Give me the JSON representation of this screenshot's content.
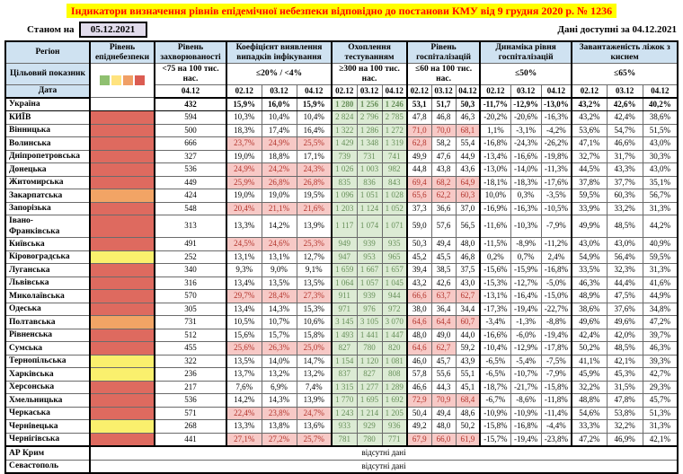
{
  "header": {
    "title": "Індикатори визначення рівнів епідемічної небезпеки відповідно до постанови КМУ від 9 грудня 2020 р. № 1236",
    "as_of": {
      "label": "Станом на",
      "date": "05.12.2021"
    },
    "available": {
      "label": "Дані доступні за",
      "date": "04.12.2021"
    }
  },
  "table": {
    "region_header": "Регіон",
    "target_row_label": "Цільовий показник",
    "date_row_label": "Дата",
    "no_data_text": "відсутні дані",
    "groups": [
      {
        "id": "level",
        "label": "Рівень епіднебезпеки",
        "target": "",
        "dates": []
      },
      {
        "id": "incidence",
        "label": "Рівень захворюваності",
        "target": "<75 на 100 тис. нас.",
        "dates": [
          "04.12"
        ]
      },
      {
        "id": "detection",
        "label": "Коефіцієнт виявлення випадків інфікування",
        "target": "≤20% / <4%",
        "dates": [
          "02.12",
          "03.12",
          "04.12"
        ]
      },
      {
        "id": "testing",
        "label": "Охоплення тестуванням",
        "target": "≥300 на 100 тис. нас.",
        "dates": [
          "02.12",
          "03.12",
          "04.12"
        ]
      },
      {
        "id": "hospital_level",
        "label": "Рівень госпіталізацій",
        "target": "≤60 на 100 тис. нас.",
        "dates": [
          "02.12",
          "03.12",
          "04.12"
        ]
      },
      {
        "id": "hospital_dynamics",
        "label": "Динаміка рівня госпіталізацій",
        "target": "≤50%",
        "dates": [
          "02.12",
          "03.12",
          "04.12"
        ]
      },
      {
        "id": "oxygen_beds",
        "label": "Завантаженість ліжок з киснем",
        "target": "≤65%",
        "dates": [
          "02.12",
          "03.12",
          "04.12"
        ]
      }
    ],
    "thresholds": {
      "detection_max": 20,
      "testing_min": 300,
      "hospital_level_max": 60,
      "hospital_dynamics_max": 50,
      "oxygen_beds_max": 65
    },
    "legend_colors": [
      "#8FC070",
      "#FFE37E",
      "#F09F66",
      "#DB5C52"
    ],
    "level_colors": {
      "red": "#DE6A5F",
      "orange": "#F2A465",
      "yellow": "#FAF06D",
      "none": "#FFFFFF"
    },
    "highlight": {
      "bad_bg": "#F7C9C6",
      "bad_text": "#B3342C",
      "good_bg": "#DCEBD4",
      "good_text": "#668F58"
    },
    "rows": [
      {
        "name": "Україна",
        "level": "none",
        "bold": true,
        "incidence": "432",
        "detection": [
          "15,9%",
          "16,0%",
          "15,9%"
        ],
        "testing": [
          "1 280",
          "1 256",
          "1 246"
        ],
        "hospital_level": [
          "53,1",
          "51,7",
          "50,3"
        ],
        "hospital_dynamics": [
          "-11,7%",
          "-12,9%",
          "-13,0%"
        ],
        "oxygen_beds": [
          "43,2%",
          "42,6%",
          "40,2%"
        ]
      },
      {
        "name": "КИЇВ",
        "level": "red",
        "incidence": "594",
        "detection": [
          "10,3%",
          "10,4%",
          "10,4%"
        ],
        "testing": [
          "2 824",
          "2 796",
          "2 785"
        ],
        "hospital_level": [
          "47,8",
          "46,8",
          "46,3"
        ],
        "hospital_dynamics": [
          "-20,2%",
          "-20,6%",
          "-16,3%"
        ],
        "oxygen_beds": [
          "43,2%",
          "42,4%",
          "38,6%"
        ]
      },
      {
        "name": "Вінницька",
        "level": "red",
        "incidence": "500",
        "detection": [
          "18,3%",
          "17,4%",
          "16,4%"
        ],
        "testing": [
          "1 322",
          "1 286",
          "1 272"
        ],
        "hospital_level": [
          "71,0",
          "70,0",
          "68,1"
        ],
        "hospital_dynamics": [
          "1,1%",
          "-3,1%",
          "-4,2%"
        ],
        "oxygen_beds": [
          "53,6%",
          "54,7%",
          "51,5%"
        ]
      },
      {
        "name": "Волинська",
        "level": "red",
        "incidence": "666",
        "detection": [
          "23,7%",
          "24,9%",
          "25,5%"
        ],
        "testing": [
          "1 429",
          "1 348",
          "1 319"
        ],
        "hospital_level": [
          "62,8",
          "58,2",
          "55,4"
        ],
        "hospital_dynamics": [
          "-16,8%",
          "-24,3%",
          "-26,2%"
        ],
        "oxygen_beds": [
          "47,1%",
          "46,6%",
          "43,0%"
        ]
      },
      {
        "name": "Дніпропетровська",
        "level": "red",
        "incidence": "327",
        "detection": [
          "19,0%",
          "18,8%",
          "17,1%"
        ],
        "testing": [
          "739",
          "731",
          "741"
        ],
        "hospital_level": [
          "49,9",
          "47,6",
          "44,9"
        ],
        "hospital_dynamics": [
          "-13,4%",
          "-16,6%",
          "-19,8%"
        ],
        "oxygen_beds": [
          "32,7%",
          "31,7%",
          "30,3%"
        ]
      },
      {
        "name": "Донецька",
        "level": "red",
        "incidence": "536",
        "detection": [
          "24,9%",
          "24,2%",
          "24,3%"
        ],
        "testing": [
          "1 026",
          "1 003",
          "982"
        ],
        "hospital_level": [
          "44,8",
          "43,8",
          "43,6"
        ],
        "hospital_dynamics": [
          "-13,0%",
          "-14,0%",
          "-11,3%"
        ],
        "oxygen_beds": [
          "44,5%",
          "43,3%",
          "43,0%"
        ]
      },
      {
        "name": "Житомирська",
        "level": "red",
        "incidence": "449",
        "detection": [
          "25,9%",
          "26,8%",
          "26,8%"
        ],
        "testing": [
          "835",
          "836",
          "843"
        ],
        "hospital_level": [
          "69,4",
          "68,2",
          "64,9"
        ],
        "hospital_dynamics": [
          "-18,1%",
          "-18,3%",
          "-17,6%"
        ],
        "oxygen_beds": [
          "37,8%",
          "37,7%",
          "35,1%"
        ]
      },
      {
        "name": "Закарпатська",
        "level": "orange",
        "incidence": "424",
        "detection": [
          "19,0%",
          "19,0%",
          "19,5%"
        ],
        "testing": [
          "1 096",
          "1 051",
          "1 028"
        ],
        "hospital_level": [
          "65,6",
          "62,2",
          "60,3"
        ],
        "hospital_dynamics": [
          "10,0%",
          "0,3%",
          "-3,5%"
        ],
        "oxygen_beds": [
          "59,5%",
          "60,3%",
          "56,7%"
        ]
      },
      {
        "name": "Запорізька",
        "level": "red",
        "incidence": "548",
        "detection": [
          "20,4%",
          "21,1%",
          "21,6%"
        ],
        "testing": [
          "1 203",
          "1 124",
          "1 052"
        ],
        "hospital_level": [
          "37,3",
          "36,6",
          "37,0"
        ],
        "hospital_dynamics": [
          "-16,9%",
          "-16,3%",
          "-10,5%"
        ],
        "oxygen_beds": [
          "33,9%",
          "33,2%",
          "31,3%"
        ]
      },
      {
        "name": "Івано-\nФранківська",
        "level": "red",
        "incidence": "313",
        "detection": [
          "13,3%",
          "14,2%",
          "13,9%"
        ],
        "testing": [
          "1 117",
          "1 074",
          "1 071"
        ],
        "hospital_level": [
          "59,0",
          "57,6",
          "56,5"
        ],
        "hospital_dynamics": [
          "-11,6%",
          "-10,3%",
          "-7,9%"
        ],
        "oxygen_beds": [
          "49,9%",
          "48,5%",
          "44,2%"
        ]
      },
      {
        "name": "Київська",
        "level": "red",
        "incidence": "491",
        "detection": [
          "24,5%",
          "24,6%",
          "25,3%"
        ],
        "testing": [
          "949",
          "939",
          "935"
        ],
        "hospital_level": [
          "50,3",
          "49,4",
          "48,0"
        ],
        "hospital_dynamics": [
          "-11,5%",
          "-8,9%",
          "-11,2%"
        ],
        "oxygen_beds": [
          "43,0%",
          "43,0%",
          "40,9%"
        ]
      },
      {
        "name": "Кіровоградська",
        "level": "yellow",
        "incidence": "252",
        "detection": [
          "13,1%",
          "13,1%",
          "12,7%"
        ],
        "testing": [
          "947",
          "953",
          "965"
        ],
        "hospital_level": [
          "45,2",
          "45,5",
          "46,8"
        ],
        "hospital_dynamics": [
          "0,2%",
          "0,7%",
          "2,4%"
        ],
        "oxygen_beds": [
          "54,9%",
          "56,4%",
          "59,5%"
        ]
      },
      {
        "name": "Луганська",
        "level": "red",
        "incidence": "340",
        "detection": [
          "9,3%",
          "9,0%",
          "9,1%"
        ],
        "testing": [
          "1 659",
          "1 667",
          "1 657"
        ],
        "hospital_level": [
          "39,4",
          "38,5",
          "37,5"
        ],
        "hospital_dynamics": [
          "-15,6%",
          "-15,9%",
          "-16,8%"
        ],
        "oxygen_beds": [
          "33,5%",
          "32,3%",
          "31,3%"
        ]
      },
      {
        "name": "Львівська",
        "level": "red",
        "incidence": "316",
        "detection": [
          "13,4%",
          "13,5%",
          "13,5%"
        ],
        "testing": [
          "1 064",
          "1 057",
          "1 045"
        ],
        "hospital_level": [
          "43,2",
          "42,6",
          "43,0"
        ],
        "hospital_dynamics": [
          "-15,3%",
          "-12,7%",
          "-5,0%"
        ],
        "oxygen_beds": [
          "46,3%",
          "44,4%",
          "41,6%"
        ]
      },
      {
        "name": "Миколаївська",
        "level": "red",
        "incidence": "570",
        "detection": [
          "29,7%",
          "28,4%",
          "27,3%"
        ],
        "testing": [
          "911",
          "939",
          "944"
        ],
        "hospital_level": [
          "66,6",
          "63,7",
          "62,7"
        ],
        "hospital_dynamics": [
          "-13,1%",
          "-16,4%",
          "-15,0%"
        ],
        "oxygen_beds": [
          "48,9%",
          "47,5%",
          "44,9%"
        ]
      },
      {
        "name": "Одеська",
        "level": "red",
        "incidence": "305",
        "detection": [
          "13,4%",
          "14,3%",
          "15,3%"
        ],
        "testing": [
          "971",
          "976",
          "972"
        ],
        "hospital_level": [
          "38,0",
          "36,4",
          "34,4"
        ],
        "hospital_dynamics": [
          "-17,3%",
          "-19,4%",
          "-22,7%"
        ],
        "oxygen_beds": [
          "38,6%",
          "37,6%",
          "34,8%"
        ]
      },
      {
        "name": "Полтавська",
        "level": "orange",
        "incidence": "731",
        "detection": [
          "10,5%",
          "10,7%",
          "10,6%"
        ],
        "testing": [
          "3 145",
          "3 105",
          "3 070"
        ],
        "hospital_level": [
          "64,6",
          "64,4",
          "60,7"
        ],
        "hospital_dynamics": [
          "-3,4%",
          "-1,3%",
          "-8,8%"
        ],
        "oxygen_beds": [
          "49,6%",
          "49,6%",
          "47,2%"
        ]
      },
      {
        "name": "Рівненська",
        "level": "red",
        "incidence": "512",
        "detection": [
          "15,6%",
          "15,7%",
          "15,8%"
        ],
        "testing": [
          "1 493",
          "1 441",
          "1 447"
        ],
        "hospital_level": [
          "48,0",
          "49,0",
          "44,0"
        ],
        "hospital_dynamics": [
          "-16,6%",
          "-6,0%",
          "-19,4%"
        ],
        "oxygen_beds": [
          "42,4%",
          "42,0%",
          "39,7%"
        ]
      },
      {
        "name": "Сумська",
        "level": "red",
        "incidence": "455",
        "detection": [
          "25,6%",
          "26,3%",
          "25,0%"
        ],
        "testing": [
          "827",
          "780",
          "820"
        ],
        "hospital_level": [
          "64,6",
          "62,7",
          "59,2"
        ],
        "hospital_dynamics": [
          "-10,4%",
          "-12,9%",
          "-17,8%"
        ],
        "oxygen_beds": [
          "50,2%",
          "48,5%",
          "46,3%"
        ]
      },
      {
        "name": "Тернопільська",
        "level": "yellow",
        "incidence": "322",
        "detection": [
          "13,5%",
          "14,0%",
          "14,7%"
        ],
        "testing": [
          "1 154",
          "1 120",
          "1 081"
        ],
        "hospital_level": [
          "46,0",
          "45,7",
          "43,9"
        ],
        "hospital_dynamics": [
          "-6,5%",
          "-5,4%",
          "-7,5%"
        ],
        "oxygen_beds": [
          "41,1%",
          "42,1%",
          "39,3%"
        ]
      },
      {
        "name": "Харківська",
        "level": "yellow",
        "incidence": "236",
        "detection": [
          "13,7%",
          "13,2%",
          "13,2%"
        ],
        "testing": [
          "837",
          "827",
          "808"
        ],
        "hospital_level": [
          "57,8",
          "55,6",
          "55,1"
        ],
        "hospital_dynamics": [
          "-6,5%",
          "-10,7%",
          "-7,9%"
        ],
        "oxygen_beds": [
          "45,9%",
          "45,3%",
          "42,7%"
        ]
      },
      {
        "name": "Херсонська",
        "level": "red",
        "incidence": "217",
        "detection": [
          "7,6%",
          "6,9%",
          "7,4%"
        ],
        "testing": [
          "1 315",
          "1 277",
          "1 289"
        ],
        "hospital_level": [
          "46,6",
          "44,3",
          "45,1"
        ],
        "hospital_dynamics": [
          "-18,7%",
          "-21,7%",
          "-15,8%"
        ],
        "oxygen_beds": [
          "32,2%",
          "31,5%",
          "29,3%"
        ]
      },
      {
        "name": "Хмельницька",
        "level": "red",
        "incidence": "536",
        "detection": [
          "14,2%",
          "14,3%",
          "13,9%"
        ],
        "testing": [
          "1 770",
          "1 695",
          "1 692"
        ],
        "hospital_level": [
          "72,9",
          "70,9",
          "68,4"
        ],
        "hospital_dynamics": [
          "-6,7%",
          "-8,6%",
          "-11,8%"
        ],
        "oxygen_beds": [
          "48,8%",
          "47,8%",
          "45,7%"
        ]
      },
      {
        "name": "Черкаська",
        "level": "red",
        "incidence": "571",
        "detection": [
          "22,4%",
          "23,8%",
          "24,7%"
        ],
        "testing": [
          "1 243",
          "1 214",
          "1 205"
        ],
        "hospital_level": [
          "50,4",
          "49,4",
          "48,6"
        ],
        "hospital_dynamics": [
          "-10,9%",
          "-10,9%",
          "-11,4%"
        ],
        "oxygen_beds": [
          "54,6%",
          "53,8%",
          "51,3%"
        ]
      },
      {
        "name": "Чернівецька",
        "level": "yellow",
        "incidence": "268",
        "detection": [
          "13,3%",
          "13,8%",
          "13,6%"
        ],
        "testing": [
          "933",
          "929",
          "936"
        ],
        "hospital_level": [
          "49,2",
          "48,0",
          "50,2"
        ],
        "hospital_dynamics": [
          "-15,8%",
          "-16,8%",
          "-4,4%"
        ],
        "oxygen_beds": [
          "33,3%",
          "32,2%",
          "31,3%"
        ]
      },
      {
        "name": "Чернігівська",
        "level": "red",
        "incidence": "441",
        "detection": [
          "27,1%",
          "27,2%",
          "25,7%"
        ],
        "testing": [
          "781",
          "780",
          "771"
        ],
        "hospital_level": [
          "67,9",
          "66,0",
          "61,9"
        ],
        "hospital_dynamics": [
          "-15,7%",
          "-19,4%",
          "-23,8%"
        ],
        "oxygen_beds": [
          "47,2%",
          "46,9%",
          "42,1%"
        ]
      }
    ],
    "footer_rows": [
      {
        "name": "АР Крим"
      },
      {
        "name": "Севастополь"
      }
    ]
  }
}
